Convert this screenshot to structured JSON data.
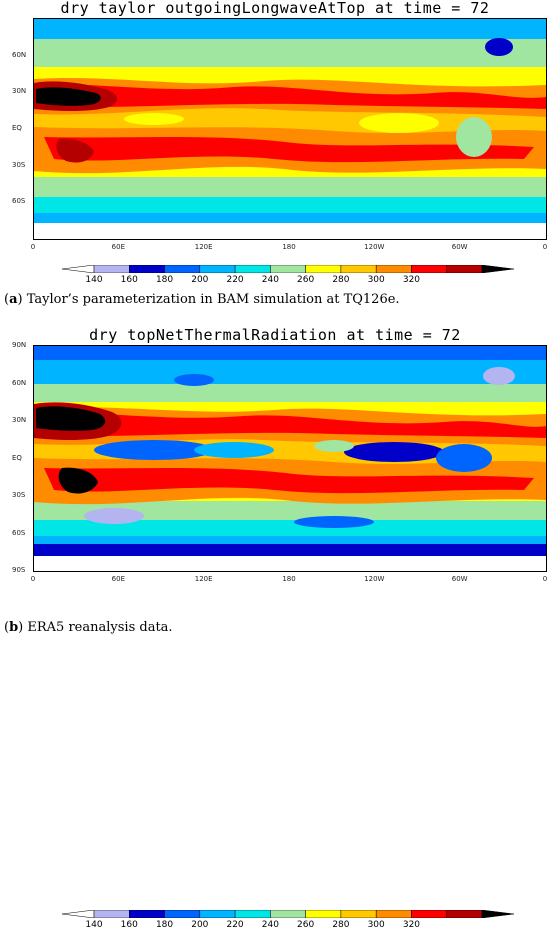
{
  "panels": [
    {
      "title": "dry taylor outgoingLongwaveAtTop at time = 72",
      "caption_tag": "a",
      "caption_text": " Taylor’s parameterization in BAM simulation at TQ126e.",
      "lat_labels": [
        "60N",
        "30N",
        "EQ",
        "30S",
        "60S"
      ],
      "lat_values": [
        60,
        30,
        0,
        -30,
        -60
      ],
      "lon_labels": [
        "0",
        "60E",
        "120E",
        "180",
        "120W",
        "60W",
        "0"
      ]
    },
    {
      "title": "dry topNetThermalRadiation at time = 72",
      "caption_tag": "b",
      "caption_text": " ERA5 reanalysis data.",
      "lat_labels": [
        "90N",
        "60N",
        "30N",
        "EQ",
        "30S",
        "60S",
        "90S"
      ],
      "lat_values": [
        90,
        60,
        30,
        0,
        -30,
        -60,
        -90
      ],
      "lon_labels": [
        "0",
        "60E",
        "120E",
        "180",
        "120W",
        "60W",
        "0"
      ]
    }
  ],
  "colorbar": {
    "labels": [
      "140",
      "160",
      "180",
      "200",
      "220",
      "240",
      "260",
      "280",
      "300",
      "320"
    ],
    "colors": [
      "#ffffff",
      "#b4b4f0",
      "#0000c8",
      "#0064ff",
      "#00b4ff",
      "#00e6e6",
      "#a0e6a0",
      "#ffff00",
      "#ffc800",
      "#ff8c00",
      "#ff0000",
      "#b40000",
      "#000000"
    ]
  }
}
